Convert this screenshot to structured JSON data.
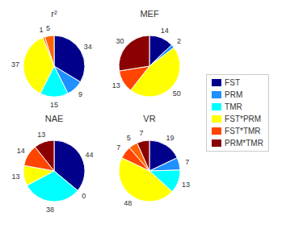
{
  "chart_data": [
    {
      "type": "pie",
      "title": "r²",
      "categories": [
        "FST",
        "PRM",
        "TMR",
        "FST*PRM",
        "FST*TMR",
        null,
        "PRM*TMR"
      ],
      "values": [
        34,
        9,
        15,
        37,
        1,
        5,
        0
      ],
      "value_labels": [
        "34",
        "9",
        "15",
        "37",
        "1",
        "5",
        null
      ],
      "colors": [
        "#00008B",
        "#1E90FF",
        "#00FFFF",
        "#FFFF00",
        "#FF4500",
        "#FF6300",
        "#8B0000"
      ],
      "data_labels": true,
      "legend": "right"
    },
    {
      "type": "pie",
      "title": "MEF",
      "categories": [
        "FST",
        "PRM",
        "TMR",
        "FST*PRM",
        "FST*TMR",
        null,
        "PRM*TMR"
      ],
      "values": [
        14,
        2,
        0,
        50,
        13,
        0,
        30
      ],
      "value_labels": [
        "14",
        "2",
        null,
        "50",
        "13",
        null,
        "30"
      ],
      "colors": [
        "#00008B",
        "#1E90FF",
        "#00FFFF",
        "#FFFF00",
        "#FF4500",
        "#FF6300",
        "#8B0000"
      ],
      "data_labels": true,
      "legend": "right"
    },
    {
      "type": "pie",
      "title": "NAE",
      "categories": [
        "FST",
        "PRM",
        "TMR",
        "FST*PRM",
        "FST*TMR",
        null,
        "PRM*TMR"
      ],
      "values": [
        44,
        0,
        38,
        13,
        14,
        0,
        13
      ],
      "value_labels": [
        "44",
        "0",
        "38",
        "13",
        "14",
        null,
        "13"
      ],
      "colors": [
        "#00008B",
        "#1E90FF",
        "#00FFFF",
        "#FFFF00",
        "#FF4500",
        "#FF6300",
        "#8B0000"
      ],
      "data_labels": true,
      "legend": "right"
    },
    {
      "type": "pie",
      "title": "VR",
      "categories": [
        "FST",
        "PRM",
        "TMR",
        "FST*PRM",
        "FST*TMR",
        null,
        "PRM*TMR"
      ],
      "values": [
        19,
        7,
        13,
        48,
        7,
        5,
        7
      ],
      "value_labels": [
        "19",
        "7",
        "13",
        "48",
        "7",
        "5",
        "7"
      ],
      "colors": [
        "#00008B",
        "#1E90FF",
        "#00FFFF",
        "#FFFF00",
        "#FF4500",
        "#FF6300",
        "#8B0000"
      ],
      "data_labels": true,
      "legend": "right"
    }
  ]
}
